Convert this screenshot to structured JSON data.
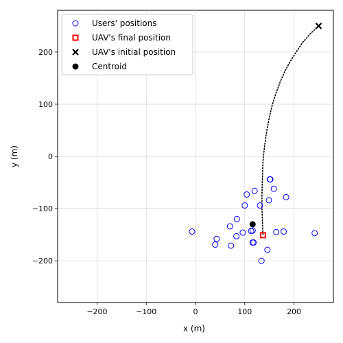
{
  "chart_data": {
    "type": "scatter",
    "xlabel": "x (m)",
    "ylabel": "y (m)",
    "xlim": [
      -280,
      280
    ],
    "ylim": [
      -280,
      280
    ],
    "xticks": [
      -200,
      -100,
      0,
      100,
      200
    ],
    "yticks": [
      -200,
      -100,
      0,
      100,
      200
    ],
    "grid": true,
    "legend_position": "top-left",
    "colors": {
      "users": "#0000ff",
      "uav_final": "#ff0000",
      "uav_initial": "#000000",
      "centroid": "#000000",
      "trajectory": "#000000"
    },
    "series": [
      {
        "name": "Users' positions",
        "marker": "open-circle",
        "points": [
          [
            -7,
            -144
          ],
          [
            40,
            -169
          ],
          [
            43,
            -158
          ],
          [
            70,
            -134
          ],
          [
            72,
            -171
          ],
          [
            83,
            -153
          ],
          [
            84,
            -120
          ],
          [
            96,
            -146
          ],
          [
            100,
            -94
          ],
          [
            104,
            -73
          ],
          [
            113,
            -143
          ],
          [
            116,
            -142
          ],
          [
            116,
            -165
          ],
          [
            118,
            -165
          ],
          [
            120,
            -66
          ],
          [
            131,
            -94
          ],
          [
            134,
            -200
          ],
          [
            146,
            -179
          ],
          [
            149,
            -84
          ],
          [
            151,
            -44
          ],
          [
            152,
            -44
          ],
          [
            159,
            -62
          ],
          [
            164,
            -145
          ],
          [
            179,
            -144
          ],
          [
            184,
            -78
          ],
          [
            242,
            -147
          ]
        ]
      },
      {
        "name": "UAV's final position",
        "marker": "open-square",
        "points": [
          [
            137,
            -151
          ]
        ]
      },
      {
        "name": "UAV's initial position",
        "marker": "x",
        "points": [
          [
            250,
            250
          ]
        ]
      },
      {
        "name": "Centroid",
        "marker": "filled-circle",
        "points": [
          [
            116,
            -130
          ]
        ]
      }
    ],
    "trajectory": {
      "style": "dotted",
      "points": [
        [
          250,
          250
        ],
        [
          233,
          235
        ],
        [
          218,
          219
        ],
        [
          205,
          201
        ],
        [
          193,
          183
        ],
        [
          182,
          164
        ],
        [
          172,
          143
        ],
        [
          163,
          120
        ],
        [
          155,
          96
        ],
        [
          149,
          71
        ],
        [
          144,
          45
        ],
        [
          140,
          18
        ],
        [
          137,
          -10
        ],
        [
          136,
          -40
        ],
        [
          135,
          -70
        ],
        [
          135,
          -100
        ],
        [
          136,
          -125
        ],
        [
          137,
          -151
        ]
      ]
    }
  }
}
